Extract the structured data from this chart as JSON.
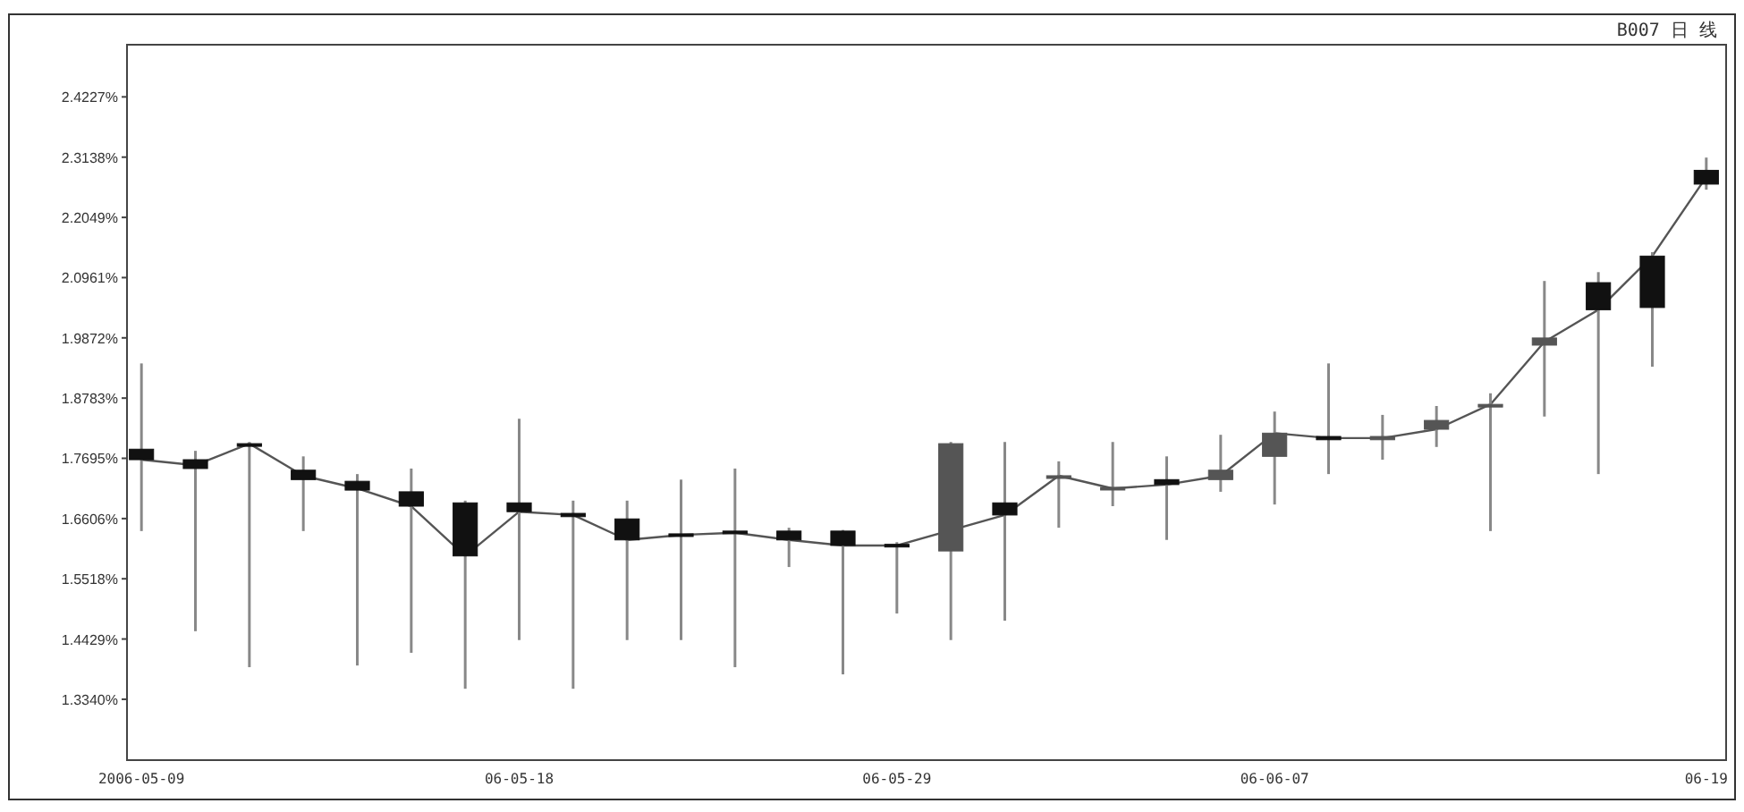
{
  "chart_data": {
    "type": "candlestick",
    "title": "B007 日 线",
    "categories": [
      "2006-05-09",
      null,
      null,
      null,
      null,
      null,
      null,
      "06-05-18",
      null,
      null,
      null,
      null,
      null,
      null,
      "06-05-29",
      null,
      null,
      null,
      null,
      null,
      null,
      "06-06-07",
      null,
      null,
      null,
      null,
      null,
      null,
      null,
      "06-19"
    ],
    "ohlc": [
      [
        1.786,
        1.941,
        1.638,
        1.767
      ],
      [
        1.767,
        1.783,
        1.457,
        1.751
      ],
      [
        1.796,
        1.799,
        1.392,
        1.793
      ],
      [
        1.748,
        1.773,
        1.638,
        1.731
      ],
      [
        1.728,
        1.741,
        1.395,
        1.712
      ],
      [
        1.709,
        1.751,
        1.418,
        1.683
      ],
      [
        1.689,
        1.693,
        1.353,
        1.593
      ],
      [
        1.689,
        1.841,
        1.441,
        1.673
      ],
      [
        1.67,
        1.693,
        1.353,
        1.664
      ],
      [
        1.66,
        1.693,
        1.441,
        1.622
      ],
      [
        1.633,
        1.731,
        1.441,
        1.631
      ],
      [
        1.638,
        1.751,
        1.392,
        1.635
      ],
      [
        1.638,
        1.644,
        1.573,
        1.622
      ],
      [
        1.638,
        1.64,
        1.379,
        1.612
      ],
      [
        1.614,
        1.618,
        1.489,
        1.612
      ],
      [
        1.602,
        1.799,
        1.441,
        1.796
      ],
      [
        1.689,
        1.799,
        1.476,
        1.667
      ],
      [
        1.735,
        1.764,
        1.644,
        1.738
      ],
      [
        1.715,
        1.799,
        1.683,
        1.717
      ],
      [
        1.731,
        1.773,
        1.622,
        1.722
      ],
      [
        1.731,
        1.812,
        1.709,
        1.748
      ],
      [
        1.773,
        1.854,
        1.686,
        1.815
      ],
      [
        1.809,
        1.941,
        1.741,
        1.803
      ],
      [
        1.803,
        1.848,
        1.767,
        1.809
      ],
      [
        1.822,
        1.864,
        1.79,
        1.838
      ],
      [
        1.864,
        1.887,
        1.638,
        1.867
      ],
      [
        1.974,
        2.09,
        1.845,
        1.987
      ],
      [
        2.087,
        2.106,
        1.741,
        2.038
      ],
      [
        2.135,
        2.142,
        1.935,
        2.042
      ],
      [
        2.29,
        2.313,
        2.255,
        2.265
      ]
    ],
    "series": [
      {
        "type": "line",
        "color": "#555555",
        "values": [
          1.767,
          1.757,
          1.796,
          1.738,
          1.715,
          1.683,
          1.593,
          1.673,
          1.667,
          1.622,
          1.631,
          1.635,
          1.622,
          1.612,
          1.612,
          null,
          1.667,
          1.738,
          1.715,
          1.722,
          1.738,
          1.815,
          1.806,
          1.806,
          1.822,
          1.867,
          1.98,
          2.038,
          2.135,
          2.278
        ]
      }
    ],
    "ylim": [
      1.224,
      2.517
    ],
    "yticks": [
      {
        "value": 2.4227,
        "label": "2.4227%"
      },
      {
        "value": 2.3138,
        "label": "2.3138%"
      },
      {
        "value": 2.2049,
        "label": "2.2049%"
      },
      {
        "value": 2.0961,
        "label": "2.0961%"
      },
      {
        "value": 1.9872,
        "label": "1.9872%"
      },
      {
        "value": 1.8783,
        "label": "1.8783%"
      },
      {
        "value": 1.7695,
        "label": "1.7695%"
      },
      {
        "value": 1.6606,
        "label": "1.6606%"
      },
      {
        "value": 1.5518,
        "label": "1.5518%"
      },
      {
        "value": 1.4429,
        "label": "1.4429%"
      },
      {
        "value": 1.334,
        "label": "1.3340%"
      }
    ],
    "grid": false
  }
}
